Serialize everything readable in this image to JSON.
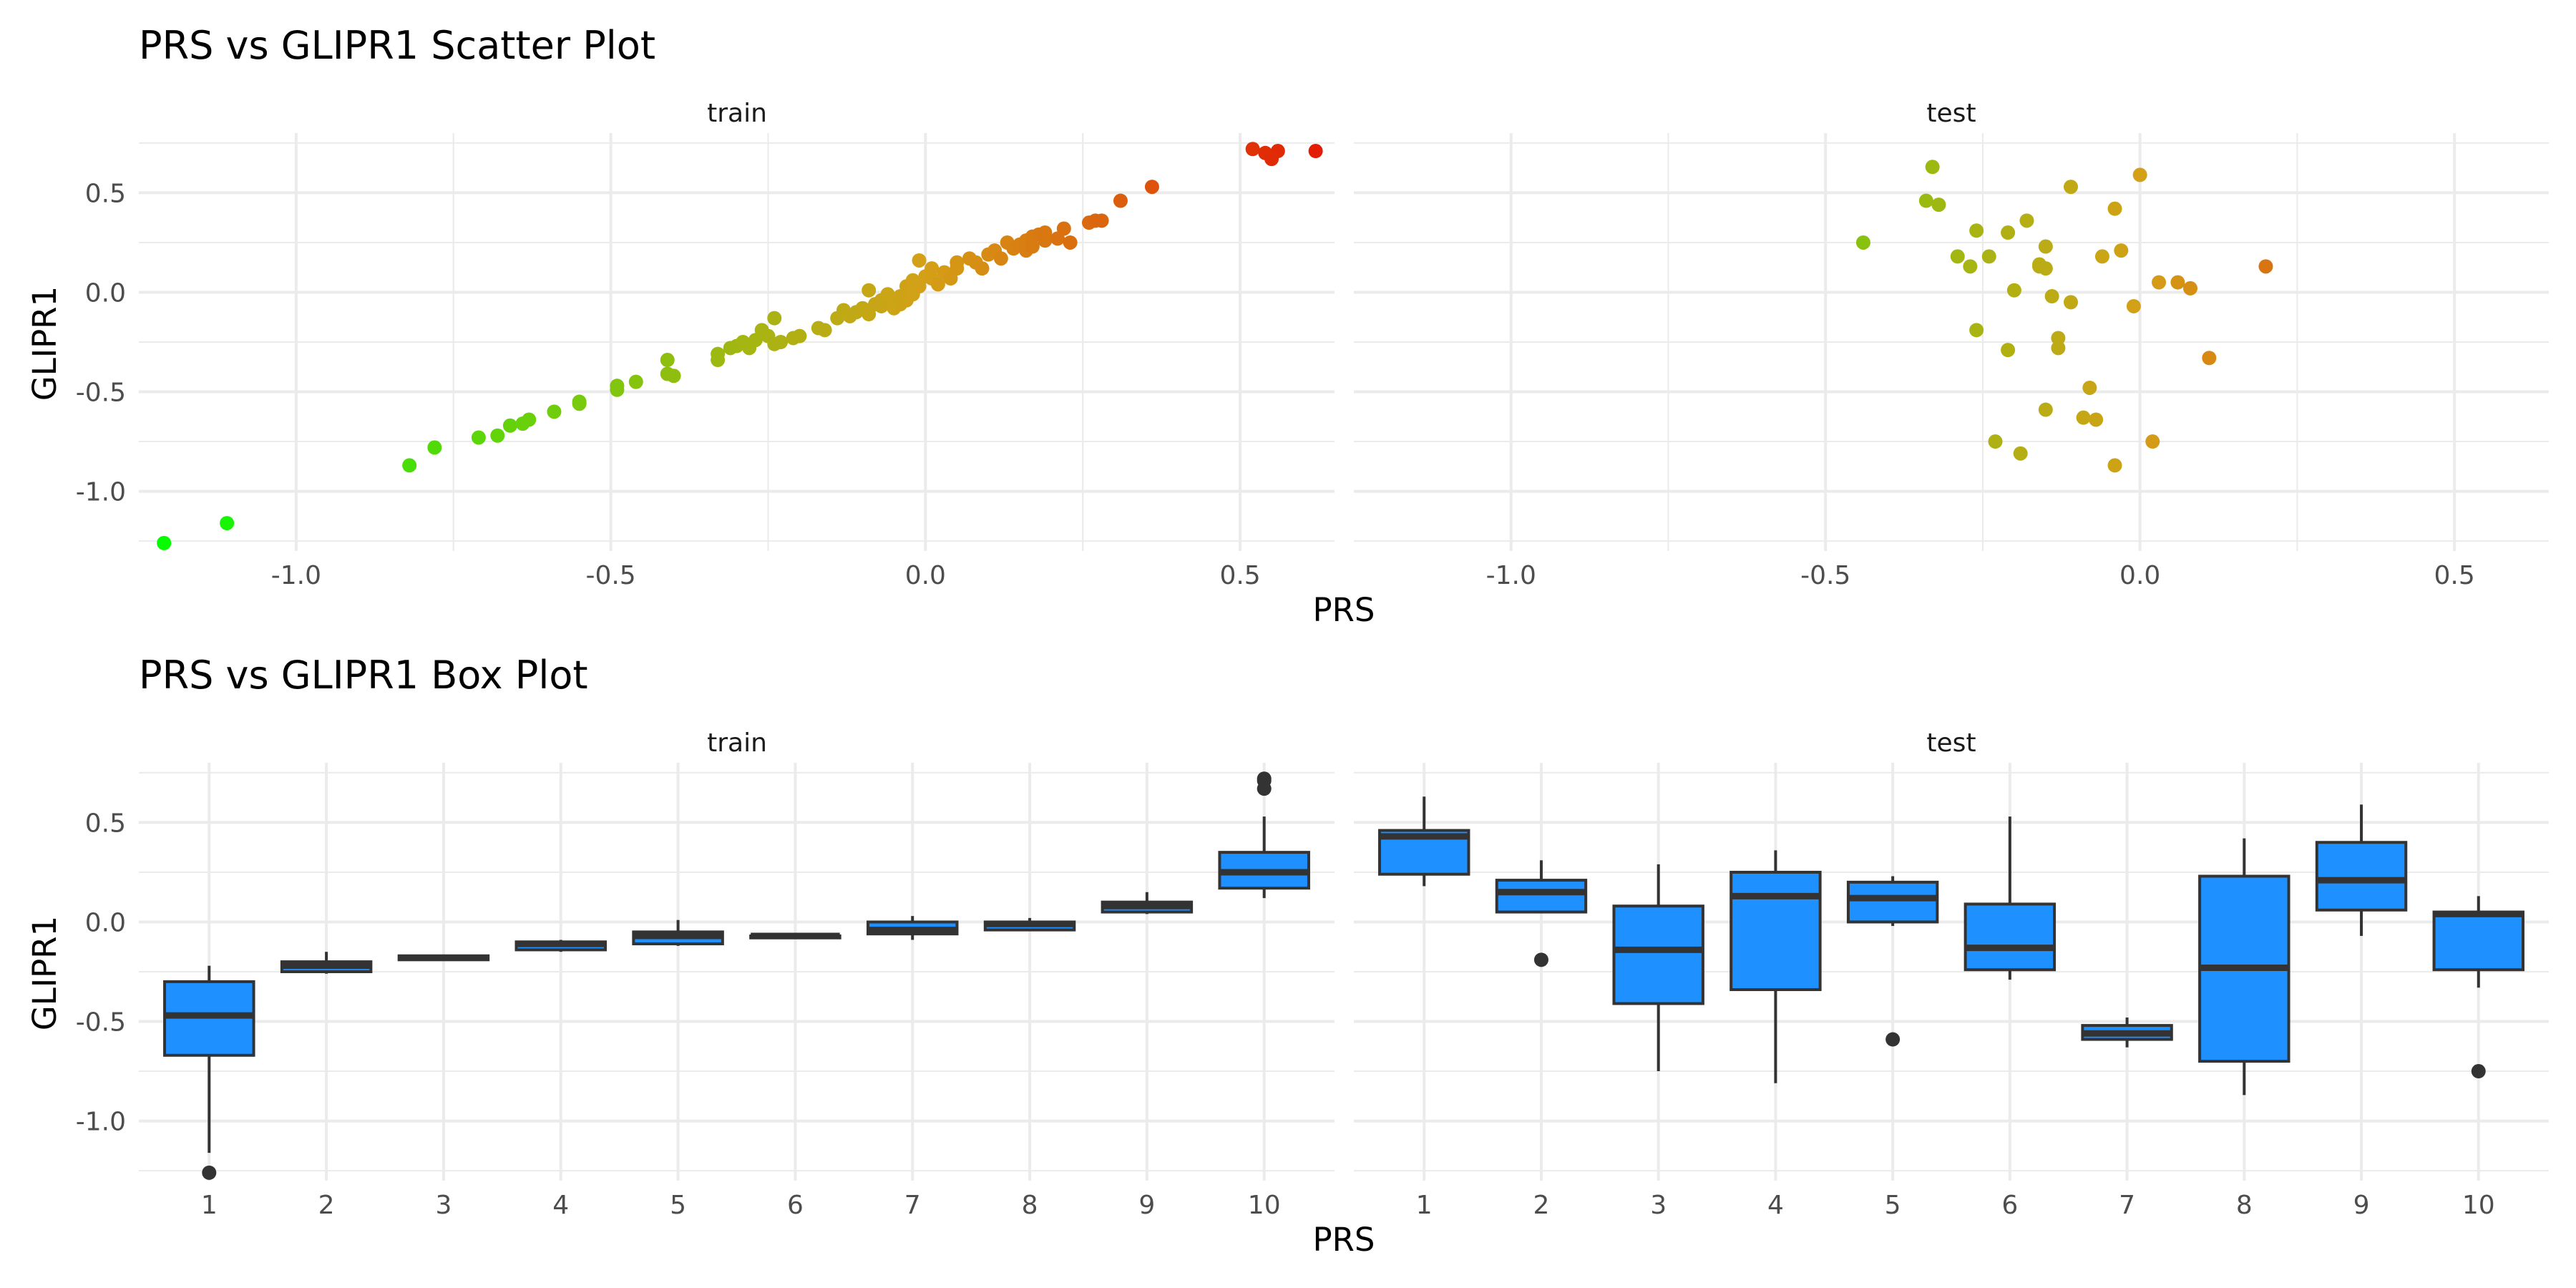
{
  "chart_data": [
    {
      "type": "scatter",
      "title": "PRS vs GLIPR1 Scatter Plot",
      "xlabel": "PRS",
      "ylabel": "GLIPR1",
      "xlim": [
        -1.25,
        0.65
      ],
      "ylim": [
        -1.3,
        0.8
      ],
      "x_ticks": [
        "-1.0",
        "-0.5",
        "0.0",
        "0.5"
      ],
      "x_tick_values": [
        -1.0,
        -0.5,
        0.0,
        0.5
      ],
      "y_ticks": [
        "0.5",
        "0.0",
        "-0.5",
        "-1.0"
      ],
      "y_tick_values": [
        0.5,
        0.0,
        -0.5,
        -1.0
      ],
      "color_scale": {
        "low": "#00ff00",
        "mid": "#d4a017",
        "high": "#e60000",
        "domain": [
          -1.25,
          0.75
        ]
      },
      "grid": true,
      "panels": [
        {
          "label": "train",
          "points": [
            [
              -1.21,
              -1.26
            ],
            [
              -1.11,
              -1.16
            ],
            [
              -0.82,
              -0.87
            ],
            [
              -0.78,
              -0.78
            ],
            [
              -0.71,
              -0.73
            ],
            [
              -0.68,
              -0.72
            ],
            [
              -0.66,
              -0.67
            ],
            [
              -0.64,
              -0.66
            ],
            [
              -0.63,
              -0.64
            ],
            [
              -0.59,
              -0.6
            ],
            [
              -0.55,
              -0.56
            ],
            [
              -0.55,
              -0.55
            ],
            [
              -0.49,
              -0.49
            ],
            [
              -0.49,
              -0.47
            ],
            [
              -0.46,
              -0.45
            ],
            [
              -0.41,
              -0.41
            ],
            [
              -0.4,
              -0.42
            ],
            [
              -0.41,
              -0.34
            ],
            [
              -0.33,
              -0.34
            ],
            [
              -0.33,
              -0.31
            ],
            [
              -0.31,
              -0.28
            ],
            [
              -0.3,
              -0.27
            ],
            [
              -0.29,
              -0.25
            ],
            [
              -0.28,
              -0.28
            ],
            [
              -0.27,
              -0.24
            ],
            [
              -0.26,
              -0.19
            ],
            [
              -0.25,
              -0.22
            ],
            [
              -0.24,
              -0.26
            ],
            [
              -0.23,
              -0.25
            ],
            [
              -0.24,
              -0.13
            ],
            [
              -0.21,
              -0.23
            ],
            [
              -0.2,
              -0.22
            ],
            [
              -0.17,
              -0.18
            ],
            [
              -0.16,
              -0.19
            ],
            [
              -0.14,
              -0.13
            ],
            [
              -0.13,
              -0.09
            ],
            [
              -0.12,
              -0.12
            ],
            [
              -0.11,
              -0.1
            ],
            [
              -0.1,
              -0.08
            ],
            [
              -0.09,
              0.01
            ],
            [
              -0.09,
              -0.11
            ],
            [
              -0.07,
              -0.07
            ],
            [
              -0.07,
              -0.04
            ],
            [
              -0.06,
              -0.03
            ],
            [
              -0.05,
              -0.06
            ],
            [
              -0.04,
              -0.06
            ],
            [
              -0.04,
              -0.02
            ],
            [
              -0.03,
              0.03
            ],
            [
              -0.08,
              -0.06
            ],
            [
              -0.07,
              -0.05
            ],
            [
              -0.06,
              -0.01
            ],
            [
              -0.05,
              -0.08
            ],
            [
              -0.04,
              -0.05
            ],
            [
              -0.03,
              -0.04
            ],
            [
              -0.02,
              -0.01
            ],
            [
              -0.01,
              0.03
            ],
            [
              -0.02,
              0.06
            ],
            [
              0.0,
              0.08
            ],
            [
              0.01,
              0.07
            ],
            [
              0.01,
              0.12
            ],
            [
              -0.01,
              0.16
            ],
            [
              0.02,
              0.04
            ],
            [
              0.03,
              0.1
            ],
            [
              0.04,
              0.07
            ],
            [
              0.05,
              0.12
            ],
            [
              0.05,
              0.15
            ],
            [
              0.07,
              0.17
            ],
            [
              0.08,
              0.15
            ],
            [
              0.09,
              0.12
            ],
            [
              0.1,
              0.19
            ],
            [
              0.11,
              0.21
            ],
            [
              0.12,
              0.17
            ],
            [
              0.13,
              0.25
            ],
            [
              0.14,
              0.22
            ],
            [
              0.15,
              0.24
            ],
            [
              0.16,
              0.21
            ],
            [
              0.16,
              0.26
            ],
            [
              0.17,
              0.28
            ],
            [
              0.17,
              0.23
            ],
            [
              0.18,
              0.29
            ],
            [
              0.19,
              0.3
            ],
            [
              0.19,
              0.26
            ],
            [
              0.21,
              0.27
            ],
            [
              0.22,
              0.32
            ],
            [
              0.23,
              0.25
            ],
            [
              0.26,
              0.35
            ],
            [
              0.27,
              0.36
            ],
            [
              0.28,
              0.36
            ],
            [
              0.31,
              0.46
            ],
            [
              0.36,
              0.53
            ],
            [
              0.52,
              0.72
            ],
            [
              0.54,
              0.7
            ],
            [
              0.56,
              0.71
            ],
            [
              0.55,
              0.67
            ],
            [
              0.62,
              0.71
            ]
          ]
        },
        {
          "label": "test",
          "points": [
            [
              -0.44,
              0.25
            ],
            [
              -0.34,
              0.46
            ],
            [
              -0.33,
              0.63
            ],
            [
              -0.32,
              0.44
            ],
            [
              -0.29,
              0.18
            ],
            [
              -0.27,
              0.13
            ],
            [
              -0.26,
              0.31
            ],
            [
              -0.26,
              -0.19
            ],
            [
              -0.24,
              0.18
            ],
            [
              -0.23,
              -0.75
            ],
            [
              -0.21,
              0.3
            ],
            [
              -0.21,
              -0.29
            ],
            [
              -0.2,
              0.01
            ],
            [
              -0.19,
              -0.81
            ],
            [
              -0.18,
              0.36
            ],
            [
              -0.16,
              0.13
            ],
            [
              -0.16,
              0.14
            ],
            [
              -0.15,
              0.12
            ],
            [
              -0.15,
              0.23
            ],
            [
              -0.15,
              -0.59
            ],
            [
              -0.14,
              -0.02
            ],
            [
              -0.13,
              -0.23
            ],
            [
              -0.13,
              -0.28
            ],
            [
              -0.11,
              0.53
            ],
            [
              -0.11,
              -0.05
            ],
            [
              -0.09,
              -0.63
            ],
            [
              -0.08,
              -0.48
            ],
            [
              -0.07,
              -0.64
            ],
            [
              -0.06,
              0.18
            ],
            [
              -0.04,
              0.42
            ],
            [
              -0.04,
              -0.87
            ],
            [
              -0.03,
              0.21
            ],
            [
              -0.01,
              -0.07
            ],
            [
              0.0,
              0.59
            ],
            [
              0.02,
              -0.75
            ],
            [
              0.03,
              0.05
            ],
            [
              0.06,
              0.05
            ],
            [
              0.08,
              0.02
            ],
            [
              0.11,
              -0.33
            ],
            [
              0.2,
              0.13
            ]
          ]
        }
      ]
    },
    {
      "type": "box",
      "title": "PRS vs GLIPR1 Box Plot",
      "xlabel": "PRS",
      "ylabel": "GLIPR1",
      "categories": [
        "1",
        "2",
        "3",
        "4",
        "5",
        "6",
        "7",
        "8",
        "9",
        "10"
      ],
      "ylim": [
        -1.3,
        0.8
      ],
      "y_ticks": [
        "0.5",
        "0.0",
        "-0.5",
        "-1.0"
      ],
      "y_tick_values": [
        0.5,
        0.0,
        -0.5,
        -1.0
      ],
      "fill": "#1e90ff",
      "outline": "#333333",
      "grid": true,
      "panels": [
        {
          "label": "train",
          "boxes": [
            {
              "lo": -1.16,
              "q1": -0.67,
              "med": -0.47,
              "q3": -0.3,
              "hi": -0.22,
              "outliers": [
                -1.26
              ]
            },
            {
              "lo": -0.26,
              "q1": -0.25,
              "med": -0.22,
              "q3": -0.2,
              "hi": -0.15,
              "outliers": []
            },
            {
              "lo": -0.19,
              "q1": -0.19,
              "med": -0.18,
              "q3": -0.17,
              "hi": -0.17,
              "outliers": []
            },
            {
              "lo": -0.15,
              "q1": -0.14,
              "med": -0.11,
              "q3": -0.1,
              "hi": -0.09,
              "outliers": []
            },
            {
              "lo": -0.12,
              "q1": -0.11,
              "med": -0.07,
              "q3": -0.05,
              "hi": 0.01,
              "outliers": []
            },
            {
              "lo": -0.08,
              "q1": -0.08,
              "med": -0.07,
              "q3": -0.07,
              "hi": -0.06,
              "outliers": []
            },
            {
              "lo": -0.09,
              "q1": -0.06,
              "med": -0.04,
              "q3": 0.0,
              "hi": 0.03,
              "outliers": []
            },
            {
              "lo": -0.04,
              "q1": -0.04,
              "med": -0.01,
              "q3": 0.0,
              "hi": 0.02,
              "outliers": []
            },
            {
              "lo": 0.04,
              "q1": 0.05,
              "med": 0.08,
              "q3": 0.1,
              "hi": 0.15,
              "outliers": []
            },
            {
              "lo": 0.12,
              "q1": 0.17,
              "med": 0.25,
              "q3": 0.35,
              "hi": 0.53,
              "outliers": [
                0.72,
                0.71,
                0.67
              ]
            }
          ]
        },
        {
          "label": "test",
          "boxes": [
            {
              "lo": 0.18,
              "q1": 0.24,
              "med": 0.43,
              "q3": 0.46,
              "hi": 0.63,
              "outliers": []
            },
            {
              "lo": 0.05,
              "q1": 0.05,
              "med": 0.15,
              "q3": 0.21,
              "hi": 0.31,
              "outliers": [
                -0.19
              ]
            },
            {
              "lo": -0.75,
              "q1": -0.41,
              "med": -0.14,
              "q3": 0.08,
              "hi": 0.29,
              "outliers": []
            },
            {
              "lo": -0.81,
              "q1": -0.34,
              "med": 0.13,
              "q3": 0.25,
              "hi": 0.36,
              "outliers": []
            },
            {
              "lo": -0.02,
              "q1": 0.0,
              "med": 0.12,
              "q3": 0.2,
              "hi": 0.23,
              "outliers": [
                -0.59
              ]
            },
            {
              "lo": -0.29,
              "q1": -0.24,
              "med": -0.13,
              "q3": 0.09,
              "hi": 0.53,
              "outliers": []
            },
            {
              "lo": -0.63,
              "q1": -0.59,
              "med": -0.56,
              "q3": -0.52,
              "hi": -0.48,
              "outliers": []
            },
            {
              "lo": -0.87,
              "q1": -0.7,
              "med": -0.23,
              "q3": 0.23,
              "hi": 0.42,
              "outliers": []
            },
            {
              "lo": -0.07,
              "q1": 0.06,
              "med": 0.21,
              "q3": 0.4,
              "hi": 0.59,
              "outliers": []
            },
            {
              "lo": -0.33,
              "q1": -0.24,
              "med": 0.04,
              "q3": 0.05,
              "hi": 0.13,
              "outliers": [
                -0.75
              ]
            }
          ]
        }
      ]
    }
  ]
}
